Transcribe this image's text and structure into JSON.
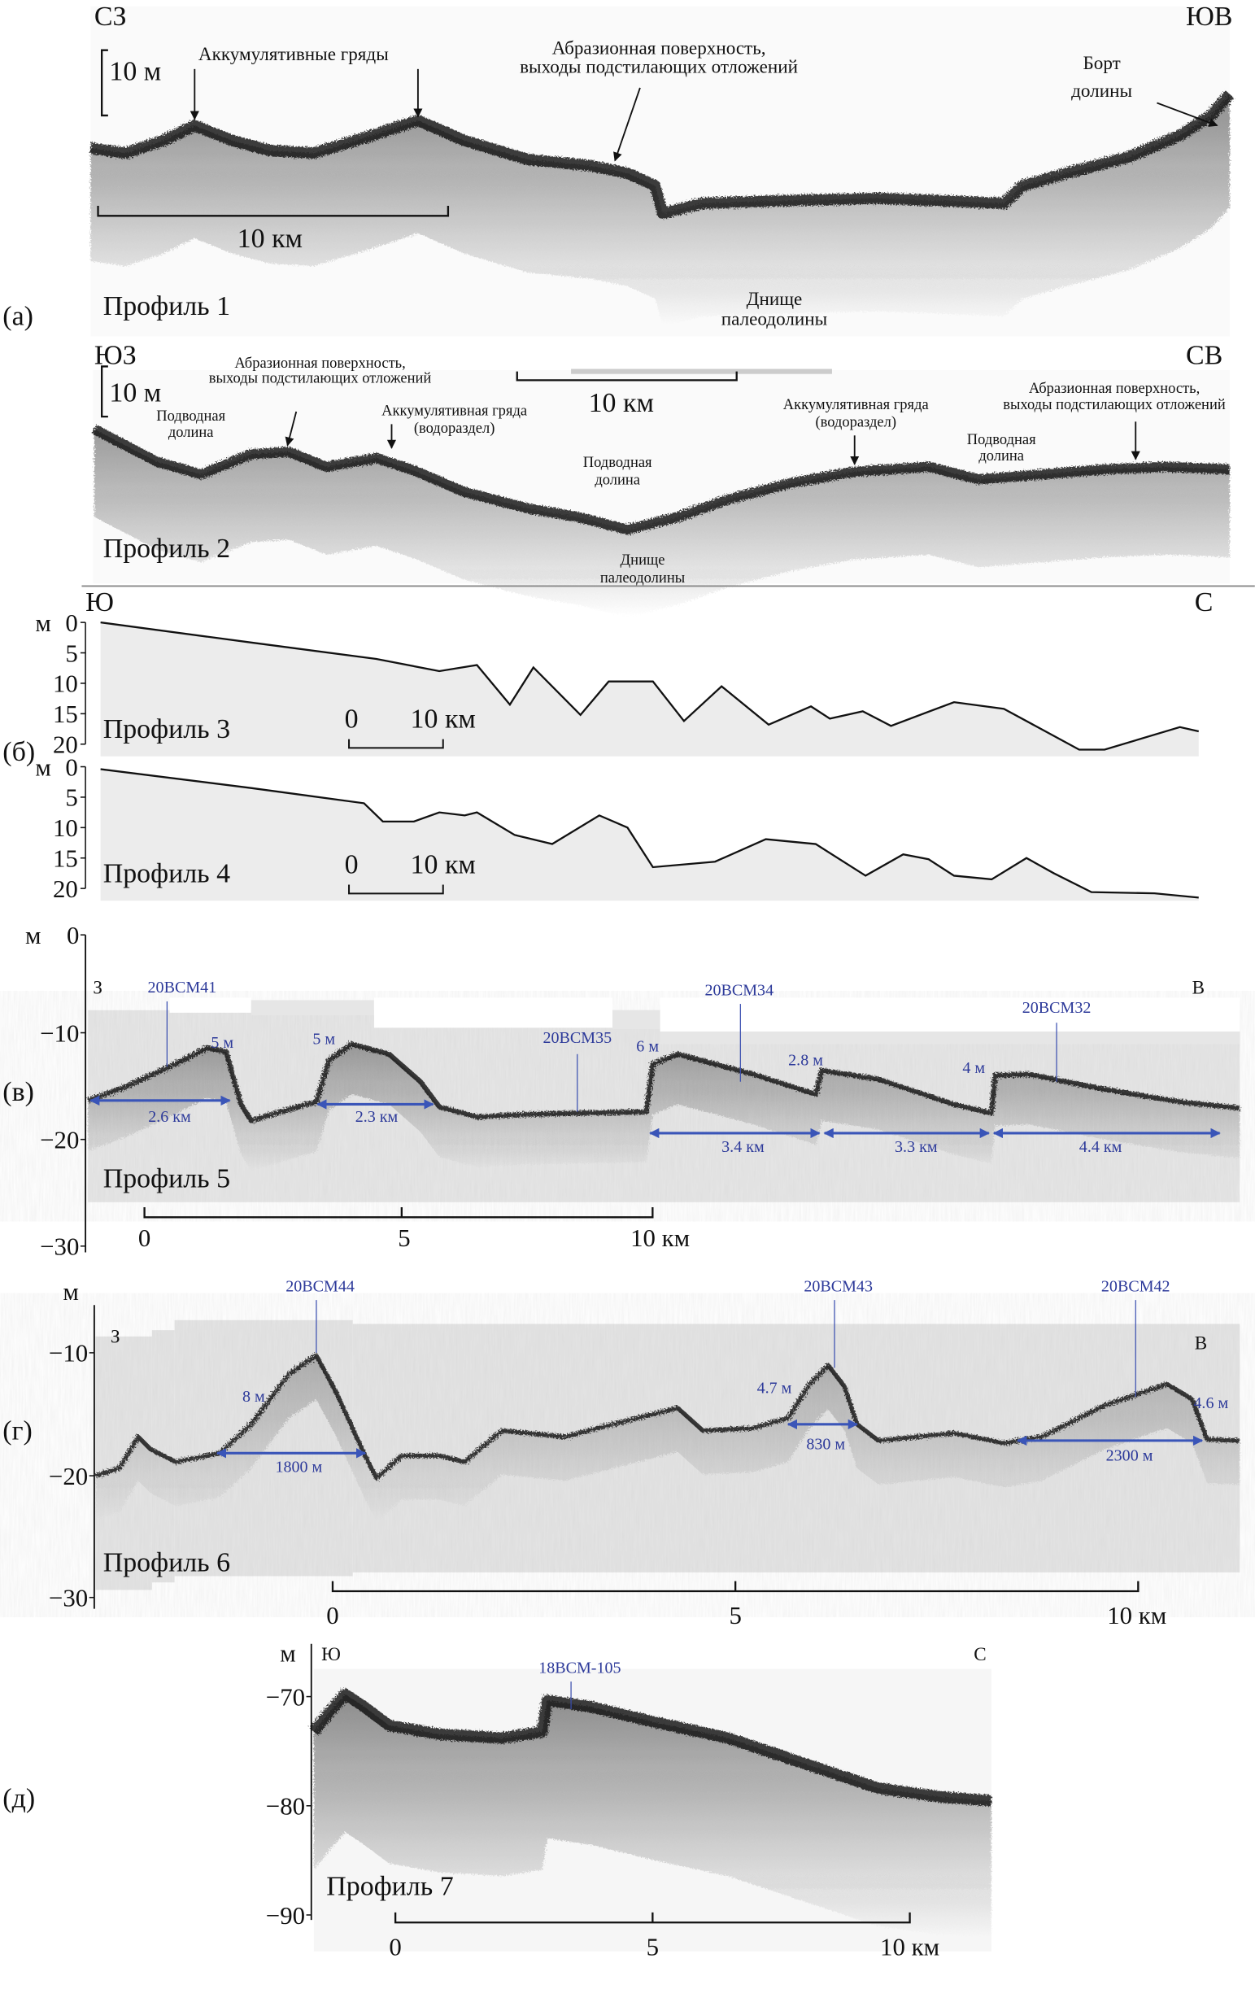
{
  "colors": {
    "annotation_blue": "#2d3a9a",
    "arrow_blue": "#3a55b8",
    "echogram_bg": "#e4e4e4",
    "profile_fill": "#ececec"
  },
  "panel_a": {
    "letter": "(а)",
    "dir_left": "СЗ",
    "dir_right": "ЮВ",
    "vscale": "10 м",
    "hscale": "10 км",
    "title": "Профиль 1",
    "ridges": "Аккумулятивные гряды",
    "abrasion_1": "Абразионная поверхность,",
    "abrasion_2": "выходы подстилающих отложений",
    "side_1": "Борт",
    "side_2": "долины",
    "floor_1": "Днище",
    "floor_2": "палеодолины"
  },
  "panel_a2": {
    "dir_left": "ЮЗ",
    "dir_right": "СВ",
    "vscale": "10 м",
    "hscale": "10 км",
    "title": "Профиль 2",
    "abrasion_1": "Абразионная поверхность,",
    "abrasion_2": "выходы подстилающих отложений",
    "valley_1": "Подводная",
    "valley_2": "долина",
    "ridge_1": "Аккумулятивная гряда",
    "ridge_2": "(водораздел)",
    "floor_1": "Днище",
    "floor_2": "палеодолины"
  },
  "panel_b": {
    "letter": "(б)",
    "dir_left": "Ю",
    "dir_right": "С",
    "unit": "м",
    "scale_0": "0",
    "scale_10": "10 км",
    "ticks": [
      "0",
      "5",
      "10",
      "15",
      "20"
    ]
  },
  "chart_data": [
    {
      "type": "line",
      "title": "Профиль 3",
      "xlabel": "distance, km (scale bar 0–10 км)",
      "ylabel": "м",
      "ylim": [
        0,
        20
      ],
      "y_ticks": [
        0,
        5,
        10,
        15,
        20
      ],
      "x": [
        0,
        16,
        29.3,
        36,
        40,
        43.5,
        46,
        51,
        54,
        58.7,
        62,
        66,
        71,
        75.5,
        77.5,
        81,
        84,
        90.7,
        96,
        104,
        106.7,
        114.7,
        116.7
      ],
      "depth": [
        0,
        3.3,
        6,
        8,
        7,
        13.5,
        7.4,
        15.2,
        9.7,
        9.7,
        16.2,
        10.5,
        16.8,
        13.8,
        15.8,
        14.6,
        17,
        13.1,
        14.2,
        20.9,
        20.9,
        17.2,
        17.9
      ]
    },
    {
      "type": "line",
      "title": "Профиль 4",
      "xlabel": "distance, km (scale bar 0–10 км)",
      "ylabel": "м",
      "ylim": [
        0,
        20
      ],
      "y_ticks": [
        0,
        5,
        10,
        15,
        20
      ],
      "x": [
        0,
        16,
        28,
        30,
        33.3,
        36,
        38.7,
        40,
        44,
        48,
        53,
        56,
        58.7,
        65.3,
        70.7,
        76,
        81.3,
        85.3,
        88,
        90.7,
        94.7,
        98.4,
        101.3,
        105.3,
        112,
        116.7
      ],
      "depth": [
        0.4,
        3.5,
        6,
        9,
        9,
        7.5,
        8,
        7.5,
        11.2,
        12.7,
        8,
        10,
        16.5,
        15.6,
        11.9,
        12.7,
        17.9,
        14.4,
        15.2,
        17.9,
        18.5,
        15,
        17.5,
        20.6,
        20.8,
        21.5
      ]
    }
  ],
  "panel_c": {
    "letter": "(в)",
    "unit": "м",
    "dir_left": "З",
    "dir_right": "В",
    "title": "Профиль 5",
    "y_ticks": [
      "0",
      "−10",
      "−20",
      "−30"
    ],
    "scale": [
      "0",
      "5",
      "10 км"
    ],
    "samples": [
      "20ВСМ41",
      "20ВСМ35",
      "20ВСМ34",
      "20ВСМ32"
    ],
    "heights": [
      "5 м",
      "5 м",
      "6 м",
      "2.8 м",
      "4 м"
    ],
    "widths": [
      "2.6 км",
      "2.3 км",
      "3.4 км",
      "3.3 км",
      "4.4 км"
    ]
  },
  "panel_d": {
    "letter": "(г)",
    "unit": "м",
    "dir_left": "З",
    "dir_right": "В",
    "title": "Профиль 6",
    "y_ticks": [
      "−10",
      "−20",
      "−30"
    ],
    "scale": [
      "0",
      "5",
      "10 км"
    ],
    "samples": [
      "20ВСМ44",
      "20ВСМ43",
      "20ВСМ42"
    ],
    "heights": [
      "8 м",
      "4.7 м",
      "4.6 м"
    ],
    "widths": [
      "1800 м",
      "830 м",
      "2300 м"
    ]
  },
  "panel_e": {
    "letter": "(д)",
    "unit": "м",
    "dir_left": "Ю",
    "dir_right": "С",
    "title": "Профиль 7",
    "y_ticks": [
      "−70",
      "−80",
      "−90"
    ],
    "scale": [
      "0",
      "5",
      "10 км"
    ],
    "sample": "18ВСМ-105"
  }
}
